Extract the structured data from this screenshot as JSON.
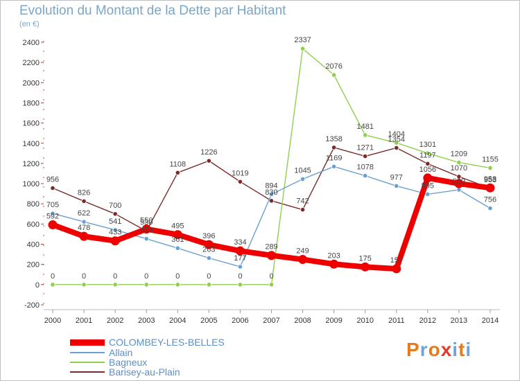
{
  "title": "Evolution du Montant de la Dette par Habitant",
  "unit": "(en €)",
  "logo": {
    "text": "Proxiti",
    "letter_colors": [
      "#e87a1e",
      "#6fa4d6",
      "#e87a1e",
      "#e23b2b",
      "#6fa4d6",
      "#e87a1e",
      "#6fa4d6"
    ]
  },
  "chart_data": {
    "type": "line",
    "title": "Evolution du Montant de la Dette par Habitant",
    "ylabel": "(en €)",
    "xlabel": "",
    "ylim": [
      -200,
      2400
    ],
    "yticks": [
      -200,
      0,
      200,
      400,
      600,
      800,
      1000,
      1200,
      1400,
      1600,
      1800,
      2000,
      2200,
      2400
    ],
    "x": [
      2000,
      2001,
      2002,
      2003,
      2004,
      2005,
      2006,
      2007,
      2008,
      2009,
      2010,
      2011,
      2012,
      2013,
      2014
    ],
    "grid": false,
    "legend_position": "bottom-left",
    "series": [
      {
        "name": "Barisey-au-Plain",
        "color": "#7a2a2a",
        "values": [
          956,
          826,
          700,
          530,
          1108,
          1226,
          1019,
          830,
          742,
          1358,
          1271,
          1354,
          1197,
          1070,
          953
        ],
        "labels": [
          "956",
          "826",
          "700",
          "530",
          "1108",
          "1226",
          "1019",
          "830",
          "742",
          "1358",
          "1271",
          "1354",
          "1197",
          "1070",
          "953"
        ]
      },
      {
        "name": "Bagneux",
        "color": "#8ed04c",
        "values": [
          0,
          0,
          0,
          0,
          0,
          0,
          0,
          0,
          2337,
          2076,
          1481,
          1404,
          1301,
          1209,
          1155
        ],
        "labels": [
          "0",
          "0",
          "0",
          "0",
          "0",
          "0",
          "0",
          "0",
          "2337",
          "2076",
          "1481",
          "1404",
          "1301",
          "1209",
          "1155"
        ]
      },
      {
        "name": "Allain",
        "color": "#6a9fd2",
        "values": [
          705,
          622,
          541,
          454,
          361,
          263,
          177,
          894,
          1045,
          1169,
          1078,
          977,
          895,
          939,
          756
        ],
        "labels": [
          "705",
          "622",
          "541",
          "454",
          "361",
          "263",
          "177",
          "894",
          "1045",
          "1169",
          "1078",
          "977",
          "895",
          "939",
          "756"
        ]
      },
      {
        "name": "COLOMBEY-LES-BELLES",
        "color": "#ee0000",
        "values": [
          592,
          478,
          433,
          550,
          495,
          396,
          334,
          289,
          249,
          203,
          175,
          157,
          1056,
          1000,
          958
        ],
        "labels": [
          "592",
          "478",
          "433",
          "550",
          "495",
          "396",
          "334",
          "289",
          "249",
          "203",
          "175",
          "157",
          "1056",
          "",
          "958"
        ]
      }
    ]
  },
  "legend": [
    {
      "name": "COLOMBEY-LES-BELLES",
      "color": "#ee0000"
    },
    {
      "name": "Allain",
      "color": "#6a9fd2"
    },
    {
      "name": "Bagneux",
      "color": "#8ed04c"
    },
    {
      "name": "Barisey-au-Plain",
      "color": "#7a2a2a"
    }
  ]
}
